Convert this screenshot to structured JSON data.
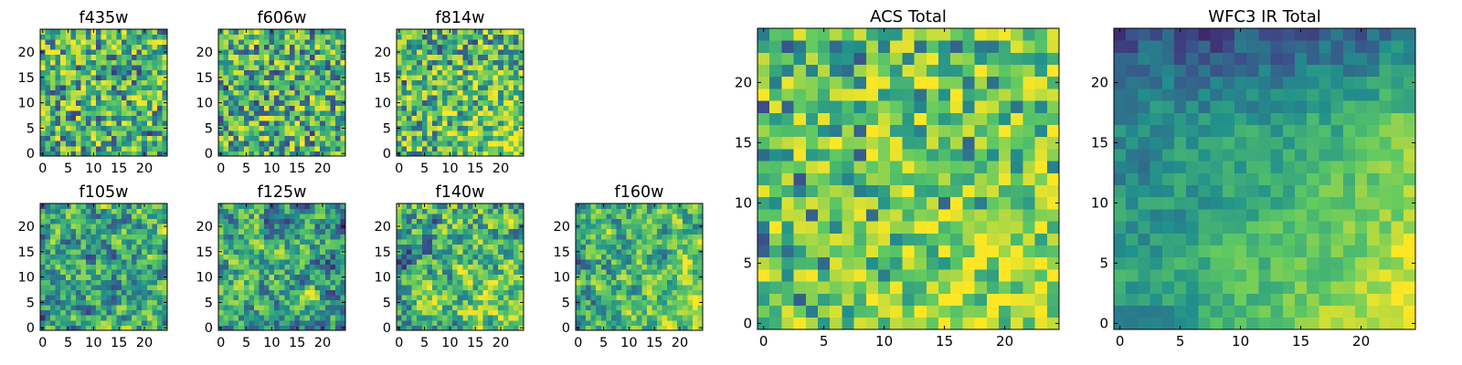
{
  "figure": {
    "colormap": "viridis",
    "colors": [
      "#440154",
      "#3b528b",
      "#21918c",
      "#5ec962",
      "#fde725"
    ]
  },
  "chart_data": [
    {
      "type": "heatmap",
      "title": "f435w",
      "grid": [
        25,
        25
      ],
      "xticks": [
        0,
        5,
        10,
        15,
        20
      ],
      "yticks": [
        0,
        5,
        10,
        15,
        20
      ],
      "xlim": [
        -0.5,
        24.5
      ],
      "ylim": [
        -0.5,
        24.5
      ],
      "pattern": "noise",
      "gradient": "none",
      "seed": 11
    },
    {
      "type": "heatmap",
      "title": "f606w",
      "grid": [
        25,
        25
      ],
      "xticks": [
        0,
        5,
        10,
        15,
        20
      ],
      "yticks": [
        0,
        5,
        10,
        15,
        20
      ],
      "xlim": [
        -0.5,
        24.5
      ],
      "ylim": [
        -0.5,
        24.5
      ],
      "pattern": "noise",
      "gradient": "none",
      "seed": 23
    },
    {
      "type": "heatmap",
      "title": "f814w",
      "grid": [
        25,
        25
      ],
      "xticks": [
        0,
        5,
        10,
        15,
        20
      ],
      "yticks": [
        0,
        5,
        10,
        15,
        20
      ],
      "xlim": [
        -0.5,
        24.5
      ],
      "ylim": [
        -0.5,
        24.5
      ],
      "pattern": "noise",
      "gradient": "bottom-right bright",
      "seed": 37
    },
    {
      "type": "heatmap",
      "title": "f105w",
      "grid": [
        25,
        25
      ],
      "xticks": [
        0,
        5,
        10,
        15,
        20
      ],
      "yticks": [
        0,
        5,
        10,
        15,
        20
      ],
      "xlim": [
        -0.5,
        24.5
      ],
      "ylim": [
        -0.5,
        24.5
      ],
      "pattern": "smooth",
      "gradient": "none",
      "seed": 41
    },
    {
      "type": "heatmap",
      "title": "f125w",
      "grid": [
        25,
        25
      ],
      "xticks": [
        0,
        5,
        10,
        15,
        20
      ],
      "yticks": [
        0,
        5,
        10,
        15,
        20
      ],
      "xlim": [
        -0.5,
        24.5
      ],
      "ylim": [
        -0.5,
        24.5
      ],
      "pattern": "smooth",
      "gradient": "none",
      "seed": 53
    },
    {
      "type": "heatmap",
      "title": "f140w",
      "grid": [
        25,
        25
      ],
      "xticks": [
        0,
        5,
        10,
        15,
        20
      ],
      "yticks": [
        0,
        5,
        10,
        15,
        20
      ],
      "xlim": [
        -0.5,
        24.5
      ],
      "ylim": [
        -0.5,
        24.5
      ],
      "pattern": "smooth",
      "gradient": "bottom-right bright",
      "seed": 67
    },
    {
      "type": "heatmap",
      "title": "f160w",
      "grid": [
        25,
        25
      ],
      "xticks": [
        0,
        5,
        10,
        15,
        20
      ],
      "yticks": [
        0,
        5,
        10,
        15,
        20
      ],
      "xlim": [
        -0.5,
        24.5
      ],
      "ylim": [
        -0.5,
        24.5
      ],
      "pattern": "smooth",
      "gradient": "bottom-right bright",
      "seed": 79
    },
    {
      "type": "heatmap",
      "title": "ACS Total",
      "grid": [
        25,
        25
      ],
      "xticks": [
        0,
        5,
        10,
        15,
        20
      ],
      "yticks": [
        0,
        5,
        10,
        15,
        20
      ],
      "xlim": [
        -0.5,
        24.5
      ],
      "ylim": [
        -0.5,
        24.5
      ],
      "pattern": "noise-bright",
      "gradient": "bottom-right bright",
      "seed": 89
    },
    {
      "type": "heatmap",
      "title": "WFC3 IR Total",
      "grid": [
        25,
        25
      ],
      "xticks": [
        0,
        5,
        10,
        15,
        20
      ],
      "yticks": [
        0,
        5,
        10,
        15,
        20
      ],
      "xlim": [
        -0.5,
        24.5
      ],
      "ylim": [
        -0.5,
        24.5
      ],
      "pattern": "gradient",
      "gradient": "bottom-right bright, top dark",
      "seed": 97
    }
  ]
}
